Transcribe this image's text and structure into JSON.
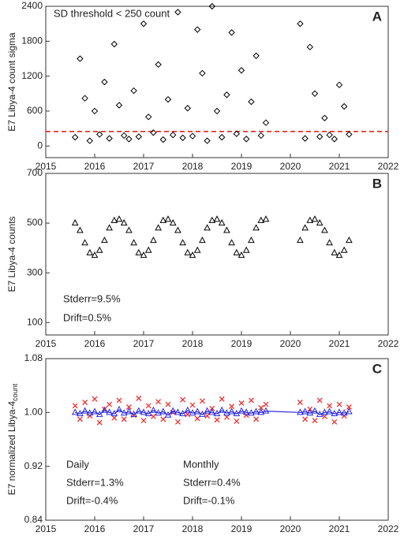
{
  "chart_data": [
    {
      "type": "scatter",
      "panel_label": "A",
      "ylabel": "E7 Libya-4 count sigma",
      "xlim": [
        2015,
        2022
      ],
      "xticks": [
        2015,
        2016,
        2017,
        2018,
        2019,
        2020,
        2021,
        2022
      ],
      "ylim": [
        -200,
        2400
      ],
      "yticks": [
        0,
        600,
        1200,
        1800,
        2400
      ],
      "threshold": 250,
      "threshold_color": "#e8231c",
      "annotations": [
        {
          "text": "SD threshold < 250 count",
          "color": "#e8231c"
        }
      ],
      "series": [
        {
          "name": "count sigma",
          "color": "#000000",
          "marker": "diamond",
          "x": [
            2015.6,
            2015.7,
            2015.8,
            2015.9,
            2016.0,
            2016.1,
            2016.2,
            2016.3,
            2016.4,
            2016.5,
            2016.6,
            2016.7,
            2016.8,
            2016.9,
            2017.0,
            2017.1,
            2017.2,
            2017.3,
            2017.4,
            2017.5,
            2017.6,
            2017.7,
            2017.8,
            2017.9,
            2018.0,
            2018.1,
            2018.2,
            2018.3,
            2018.4,
            2018.5,
            2018.6,
            2018.7,
            2018.8,
            2018.9,
            2019.0,
            2019.1,
            2019.2,
            2019.3,
            2019.4,
            2019.5,
            2020.2,
            2020.3,
            2020.4,
            2020.5,
            2020.6,
            2020.7,
            2020.8,
            2020.9,
            2021.0,
            2021.1,
            2021.2
          ],
          "values": [
            150,
            1500,
            820,
            90,
            600,
            200,
            1100,
            130,
            1750,
            700,
            180,
            120,
            950,
            160,
            2100,
            500,
            230,
            1400,
            110,
            800,
            190,
            2300,
            140,
            650,
            170,
            2000,
            1250,
            90,
            2400,
            600,
            150,
            880,
            1950,
            210,
            1300,
            120,
            760,
            1550,
            180,
            400,
            2100,
            130,
            1700,
            900,
            160,
            480,
            190,
            120,
            1050,
            680,
            200
          ]
        }
      ]
    },
    {
      "type": "scatter",
      "panel_label": "B",
      "ylabel": "E7 Libya-4 counts",
      "xlim": [
        2015,
        2022
      ],
      "xticks": [
        2015,
        2016,
        2017,
        2018,
        2019,
        2020,
        2021,
        2022
      ],
      "ylim": [
        50,
        700
      ],
      "yticks": [
        100,
        300,
        500,
        700
      ],
      "annotations": [
        {
          "text": "Stderr=9.5%",
          "color": "#000000"
        },
        {
          "text": "Drift=0.5%",
          "color": "#000000"
        }
      ],
      "series": [
        {
          "name": "counts",
          "color": "#000000",
          "marker": "triangle",
          "x": [
            2015.6,
            2015.7,
            2015.8,
            2015.9,
            2016.0,
            2016.1,
            2016.2,
            2016.3,
            2016.4,
            2016.5,
            2016.6,
            2016.7,
            2016.8,
            2016.9,
            2017.0,
            2017.1,
            2017.2,
            2017.3,
            2017.4,
            2017.5,
            2017.6,
            2017.7,
            2017.8,
            2017.9,
            2018.0,
            2018.1,
            2018.2,
            2018.3,
            2018.4,
            2018.5,
            2018.6,
            2018.7,
            2018.8,
            2018.9,
            2019.0,
            2019.1,
            2019.2,
            2019.3,
            2019.4,
            2019.5,
            2020.2,
            2020.3,
            2020.4,
            2020.5,
            2020.6,
            2020.7,
            2020.8,
            2020.9,
            2021.0,
            2021.1,
            2021.2
          ],
          "values": [
            500,
            470,
            420,
            380,
            370,
            390,
            430,
            480,
            510,
            515,
            500,
            470,
            420,
            380,
            370,
            390,
            430,
            480,
            510,
            515,
            500,
            470,
            420,
            380,
            370,
            390,
            430,
            480,
            510,
            515,
            500,
            470,
            420,
            380,
            370,
            390,
            430,
            480,
            510,
            515,
            430,
            480,
            510,
            515,
            500,
            470,
            420,
            380,
            370,
            390,
            430
          ]
        }
      ]
    },
    {
      "type": "scatter",
      "panel_label": "C",
      "ylabel": "E7 normalized Libya-4",
      "ylabel_sub": "count",
      "xlim": [
        2015,
        2022
      ],
      "xticks": [
        2015,
        2016,
        2017,
        2018,
        2019,
        2020,
        2021,
        2022
      ],
      "ylim": [
        0.84,
        1.08
      ],
      "yticks": [
        0.84,
        0.92,
        {
          "value": 1.0,
          "label": "1.00"
        },
        1.08
      ],
      "annotations": [
        {
          "text": "Daily",
          "color": "#e8231c"
        },
        {
          "text": "Stderr=1.3%",
          "color": "#e8231c"
        },
        {
          "text": "Drift=-0.4%",
          "color": "#e8231c"
        },
        {
          "text": "Monthly",
          "color": "#2a2adf"
        },
        {
          "text": "Stderr=0.4%",
          "color": "#2a2adf"
        },
        {
          "text": "Drift=-0.1%",
          "color": "#2a2adf"
        }
      ],
      "series": [
        {
          "name": "Daily",
          "color": "#f03030",
          "marker": "x",
          "x": [
            2015.6,
            2015.7,
            2015.8,
            2015.9,
            2016.0,
            2016.1,
            2016.2,
            2016.3,
            2016.4,
            2016.5,
            2016.6,
            2016.7,
            2016.8,
            2016.9,
            2017.0,
            2017.1,
            2017.2,
            2017.3,
            2017.4,
            2017.5,
            2017.6,
            2017.7,
            2017.8,
            2017.9,
            2018.0,
            2018.1,
            2018.2,
            2018.3,
            2018.4,
            2018.5,
            2018.6,
            2018.7,
            2018.8,
            2018.9,
            2019.0,
            2019.1,
            2019.2,
            2019.3,
            2019.4,
            2019.5,
            2020.2,
            2020.3,
            2020.4,
            2020.5,
            2020.6,
            2020.7,
            2020.8,
            2020.9,
            2021.0,
            2021.1,
            2021.2
          ],
          "values": [
            1.01,
            0.99,
            1.015,
            0.995,
            1.02,
            0.985,
            1.005,
            1.012,
            0.992,
            1.018,
            0.99,
            1.008,
            0.996,
            1.021,
            0.988,
            1.01,
            0.994,
            1.016,
            0.99,
            1.012,
            1.0,
            0.986,
            1.019,
            0.997,
            1.011,
            0.991,
            1.017,
            0.995,
            1.006,
            0.989,
            1.02,
            0.993,
            1.009,
            0.987,
            1.014,
            0.996,
            1.018,
            0.99,
            1.007,
            1.012,
            1.015,
            0.99,
            1.005,
            0.988,
            1.018,
            0.994,
            1.01,
            0.986,
            1.012,
            0.995,
            1.008
          ]
        },
        {
          "name": "Monthly",
          "color": "#2a2adf",
          "marker": "triangle",
          "x": [
            2015.6,
            2015.7,
            2015.8,
            2015.9,
            2016.0,
            2016.1,
            2016.2,
            2016.3,
            2016.4,
            2016.5,
            2016.6,
            2016.7,
            2016.8,
            2016.9,
            2017.0,
            2017.1,
            2017.2,
            2017.3,
            2017.4,
            2017.5,
            2017.6,
            2017.7,
            2017.8,
            2017.9,
            2018.0,
            2018.1,
            2018.2,
            2018.3,
            2018.4,
            2018.5,
            2018.6,
            2018.7,
            2018.8,
            2018.9,
            2019.0,
            2019.1,
            2019.2,
            2019.3,
            2019.4,
            2019.5,
            2020.2,
            2020.3,
            2020.4,
            2020.5,
            2020.6,
            2020.7,
            2020.8,
            2020.9,
            2021.0,
            2021.1,
            2021.2
          ],
          "values": [
            1.0,
            0.998,
            1.002,
            0.999,
            1.001,
            0.997,
            1.003,
            1.0,
            0.998,
            1.004,
            0.999,
            1.001,
            0.997,
            1.002,
            1.0,
            0.998,
            1.003,
            0.999,
            1.001,
            0.996,
            1.002,
            1.0,
            0.998,
            1.003,
            0.999,
            1.001,
            0.997,
            1.002,
            1.0,
            0.998,
            1.003,
            0.999,
            1.001,
            0.998,
            1.002,
            1.0,
            0.999,
            1.001,
            1.0,
            1.002,
            1.0,
            1.001,
            0.999,
            1.002,
            0.997,
            1.0,
            1.001,
            0.998,
            1.0,
            0.999,
            1.001
          ]
        }
      ]
    }
  ]
}
